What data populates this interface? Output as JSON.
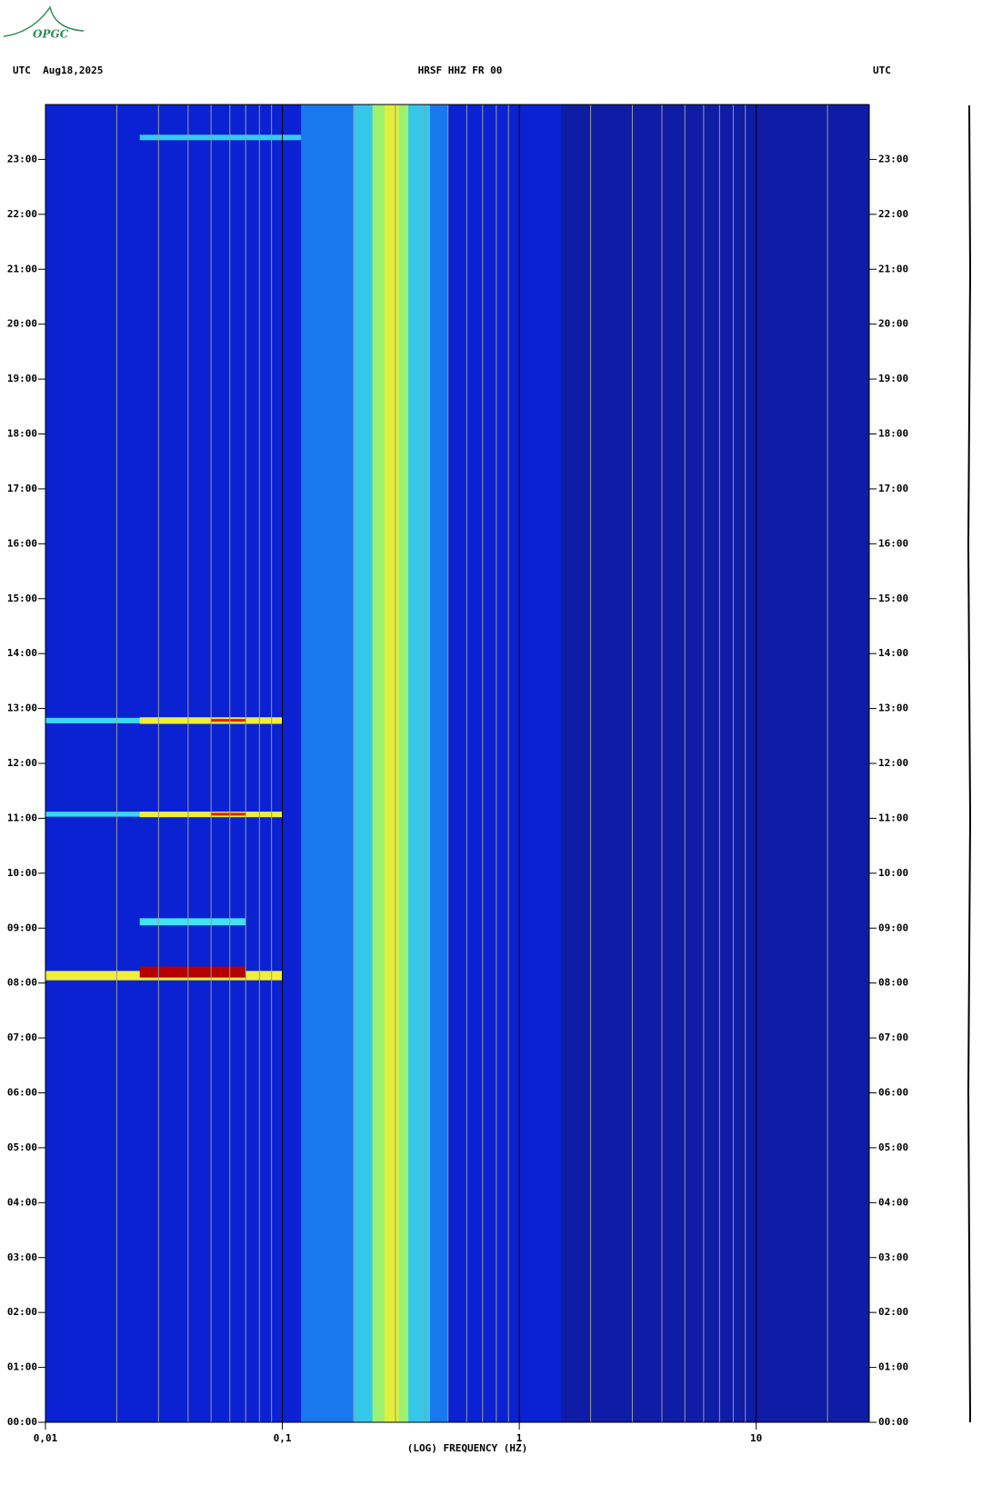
{
  "logo": "OPGC",
  "chart_data": {
    "type": "spectrogram",
    "header_left": "UTC  Aug18,2025",
    "title": "HRSF HHZ FR 00",
    "header_right": "UTC",
    "x_label": "(LOG) FREQUENCY (HZ)",
    "log_x": true,
    "xlim": [
      0.01,
      30
    ],
    "xticks": [
      {
        "value": 0.01,
        "label": "0,01"
      },
      {
        "value": 0.1,
        "label": "0,1"
      },
      1,
      10
    ],
    "xminor": [
      0.02,
      0.03,
      0.04,
      0.05,
      0.06,
      0.07,
      0.08,
      0.09,
      0.2,
      0.3,
      0.4,
      0.5,
      0.6,
      0.7,
      0.8,
      0.9,
      2,
      3,
      4,
      5,
      6,
      7,
      8,
      9,
      20
    ],
    "ylim": [
      0,
      24
    ],
    "yticks": [
      {
        "value": 0,
        "label": "00:00"
      },
      {
        "value": 1,
        "label": "01:00"
      },
      {
        "value": 2,
        "label": "02:00"
      },
      {
        "value": 3,
        "label": "03:00"
      },
      {
        "value": 4,
        "label": "04:00"
      },
      {
        "value": 5,
        "label": "05:00"
      },
      {
        "value": 6,
        "label": "06:00"
      },
      {
        "value": 7,
        "label": "07:00"
      },
      {
        "value": 8,
        "label": "08:00"
      },
      {
        "value": 9,
        "label": "09:00"
      },
      {
        "value": 10,
        "label": "10:00"
      },
      {
        "value": 11,
        "label": "11:00"
      },
      {
        "value": 12,
        "label": "12:00"
      },
      {
        "value": 13,
        "label": "13:00"
      },
      {
        "value": 14,
        "label": "14:00"
      },
      {
        "value": 15,
        "label": "15:00"
      },
      {
        "value": 16,
        "label": "16:00"
      },
      {
        "value": 17,
        "label": "17:00"
      },
      {
        "value": 18,
        "label": "18:00"
      },
      {
        "value": 19,
        "label": "19:00"
      },
      {
        "value": 20,
        "label": "20:00"
      },
      {
        "value": 21,
        "label": "21:00"
      },
      {
        "value": 22,
        "label": "22:00"
      },
      {
        "value": 23,
        "label": "23:00"
      }
    ],
    "features": [
      {
        "x": [
          0.01,
          1.5
        ],
        "y": [
          0,
          24
        ],
        "color": "#0b22d2"
      },
      {
        "x": [
          1.5,
          30
        ],
        "y": [
          0,
          24
        ],
        "color": "#0e1ca6"
      },
      {
        "x": [
          0.12,
          0.5
        ],
        "y": [
          0,
          24
        ],
        "color": "#1a78ee"
      },
      {
        "x": [
          0.2,
          0.42
        ],
        "y": [
          0,
          24
        ],
        "color": "#35c8e8"
      },
      {
        "x": [
          0.24,
          0.34
        ],
        "y": [
          0,
          24
        ],
        "color": "#9ef070"
      },
      {
        "x": [
          0.27,
          0.31
        ],
        "y": [
          0,
          24
        ],
        "color": "#e2ef3a"
      },
      {
        "x": [
          0.01,
          0.1
        ],
        "y": [
          8.05,
          8.22
        ],
        "color": "#f0ee3a"
      },
      {
        "x": [
          0.025,
          0.07
        ],
        "y": [
          8.1,
          8.3
        ],
        "color": "#b40000"
      },
      {
        "x": [
          0.025,
          0.07
        ],
        "y": [
          9.05,
          9.18
        ],
        "color": "#42e2f2"
      },
      {
        "x": [
          0.01,
          0.1
        ],
        "y": [
          11.03,
          11.12
        ],
        "color": "#3ad8f0"
      },
      {
        "x": [
          0.025,
          0.1
        ],
        "y": [
          11.02,
          11.12
        ],
        "color": "#f0ee3a"
      },
      {
        "x": [
          0.01,
          0.1
        ],
        "y": [
          12.73,
          12.83
        ],
        "color": "#3ad8f0"
      },
      {
        "x": [
          0.025,
          0.1
        ],
        "y": [
          12.72,
          12.84
        ],
        "color": "#f0ee3a"
      },
      {
        "x": [
          0.05,
          0.07
        ],
        "y": [
          11.05,
          11.1
        ],
        "color": "#e02010"
      },
      {
        "x": [
          0.05,
          0.07
        ],
        "y": [
          12.76,
          12.81
        ],
        "color": "#e02010"
      },
      {
        "x": [
          0.025,
          0.12
        ],
        "y": [
          23.35,
          23.45
        ],
        "color": "#38c8f0"
      }
    ]
  }
}
